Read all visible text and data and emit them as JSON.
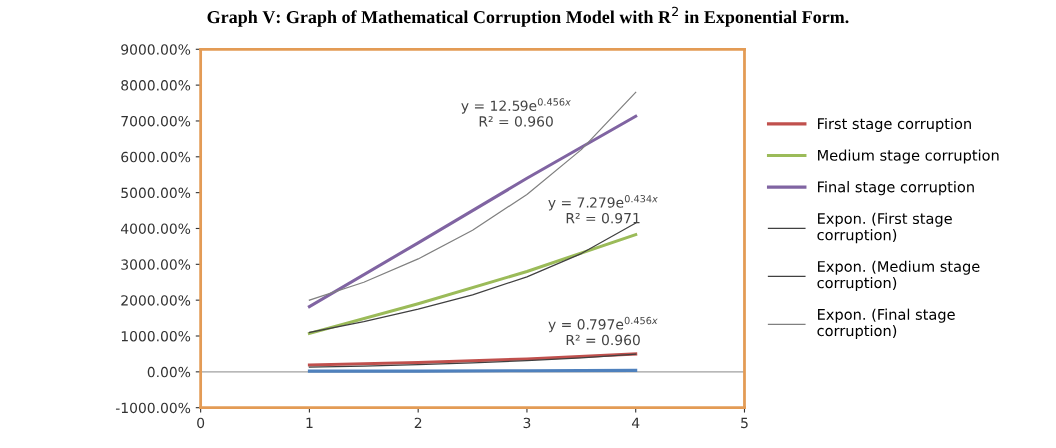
{
  "chart_data": {
    "type": "line",
    "title": "Graph V: Graph of Mathematical Corruption Model with R$^{2}$ in Exponential Form.",
    "x": [
      1,
      2,
      3,
      4
    ],
    "series": [
      {
        "name": "First stage corruption",
        "color": "#c0504d",
        "values": [
          190,
          260,
          360,
          500
        ]
      },
      {
        "name": "Medium stage corruption",
        "color": "#9bbb59",
        "values": [
          1070,
          1900,
          2800,
          3830
        ]
      },
      {
        "name": "Final stage corruption",
        "color": "#8064a2",
        "values": [
          1820,
          3600,
          5400,
          7130
        ]
      },
      {
        "color": "#4f81bd",
        "values": [
          20,
          20,
          30,
          40
        ]
      },
      {
        "name": "Expon. (First stage corruption)",
        "color": "#404040",
        "x": [
          1,
          1.5,
          2,
          2.5,
          3,
          3.5,
          4
        ],
        "values": [
          130,
          160,
          200,
          250,
          310,
          390,
          490
        ]
      },
      {
        "name": "Expon. (Medium stage corruption)",
        "color": "#404040",
        "x": [
          1,
          1.5,
          2,
          2.5,
          3,
          3.5,
          4
        ],
        "values": [
          1100,
          1400,
          1750,
          2150,
          2650,
          3300,
          4150
        ]
      },
      {
        "name": "Expon. (Final stage corruption)",
        "color": "#808080",
        "x": [
          1,
          1.5,
          2,
          2.5,
          3,
          3.5,
          4
        ],
        "values": [
          2000,
          2500,
          3150,
          3950,
          4950,
          6200,
          7800
        ]
      }
    ],
    "xlim": [
      0,
      5
    ],
    "xticks": [
      0,
      1,
      2,
      3,
      4,
      5
    ],
    "ylim": [
      -1000,
      9000
    ],
    "yticks": [
      {
        "value": -1000,
        "label": "-1000.00%"
      },
      {
        "value": 0,
        "label": "0.00%"
      },
      {
        "value": 1000,
        "label": "1000.00%"
      },
      {
        "value": 2000,
        "label": "2000.00%"
      },
      {
        "value": 3000,
        "label": "3000.00%"
      },
      {
        "value": 4000,
        "label": "4000.00%"
      },
      {
        "value": 5000,
        "label": "5000.00%"
      },
      {
        "value": 6000,
        "label": "6000.00%"
      },
      {
        "value": 7000,
        "label": "7000.00%"
      },
      {
        "value": 8000,
        "label": "8000.00%"
      },
      {
        "value": 9000,
        "label": "9000.00%"
      }
    ],
    "ref_lines": [
      {
        "axis": "y",
        "value": 0,
        "color": "#a0a0a0"
      }
    ],
    "annotations": [
      "y = 12.59e$^{0.456x}$\nR² = 0.960",
      "y = 7.279e$^{0.434x}$\nR² = 0.971",
      "y = 0.797e$^{0.456x}$\nR² = 0.960"
    ],
    "grid": false,
    "legend": "right",
    "marker": "none",
    "line_style": "solid"
  }
}
